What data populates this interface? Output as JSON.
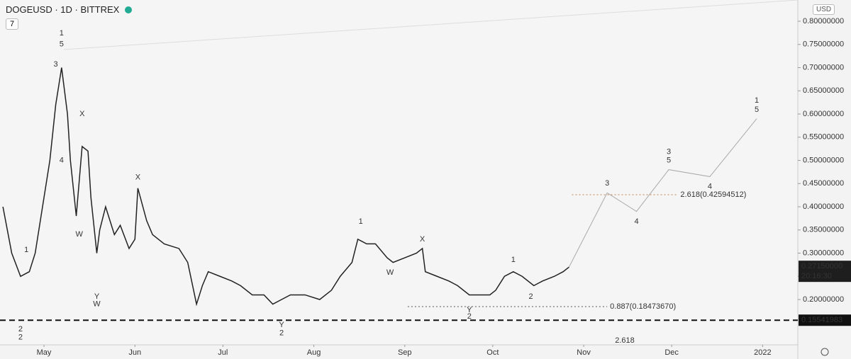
{
  "chart_data": {
    "type": "line",
    "title": "DOGEUSD · 1D · BITTREX",
    "interval_badge": "7",
    "currency": "USD",
    "countdown": "20:16:30",
    "xlim": [
      0,
      272
    ],
    "ylim": [
      0.1023,
      0.8458
    ],
    "xticks": [
      {
        "value": 15,
        "label": "May"
      },
      {
        "value": 46,
        "label": "Jun"
      },
      {
        "value": 76,
        "label": "Jul"
      },
      {
        "value": 107,
        "label": "Aug"
      },
      {
        "value": 138,
        "label": "Sep"
      },
      {
        "value": 168,
        "label": "Oct"
      },
      {
        "value": 199,
        "label": "Nov"
      },
      {
        "value": 229,
        "label": "Dec"
      },
      {
        "value": 260,
        "label": "2022"
      }
    ],
    "yticks": [
      {
        "value": 0.2,
        "label": "0.20000000"
      },
      {
        "value": 0.25,
        "label": "0.25000000"
      },
      {
        "value": 0.3,
        "label": "0.30000000"
      },
      {
        "value": 0.35,
        "label": "0.35000000"
      },
      {
        "value": 0.4,
        "label": "0.40000000"
      },
      {
        "value": 0.45,
        "label": "0.45000000"
      },
      {
        "value": 0.5,
        "label": "0.50000000"
      },
      {
        "value": 0.55,
        "label": "0.55000000"
      },
      {
        "value": 0.6,
        "label": "0.60000000"
      },
      {
        "value": 0.65,
        "label": "0.65000000"
      },
      {
        "value": 0.7,
        "label": "0.70000000"
      },
      {
        "value": 0.75,
        "label": "0.75000000"
      },
      {
        "value": 0.8,
        "label": "0.80000000"
      }
    ],
    "series": [
      {
        "name": "DOGEUSD",
        "color": "#222222",
        "x": [
          1,
          4,
          7,
          10,
          12,
          15,
          17,
          19,
          21,
          23,
          24,
          26,
          28,
          30,
          31,
          33,
          34,
          36,
          39,
          41,
          44,
          46,
          47,
          50,
          52,
          56,
          61,
          64,
          67,
          69,
          71,
          75,
          79,
          82,
          86,
          90,
          93,
          96,
          99,
          104,
          109,
          113,
          116,
          120,
          122,
          125,
          128,
          132,
          134,
          138,
          142,
          144,
          145,
          149,
          153,
          156,
          160,
          163,
          167,
          169,
          172,
          175,
          178,
          182,
          185,
          189,
          192,
          194
        ],
        "values": [
          0.4,
          0.3,
          0.25,
          0.26,
          0.3,
          0.42,
          0.5,
          0.62,
          0.7,
          0.6,
          0.5,
          0.38,
          0.53,
          0.52,
          0.42,
          0.3,
          0.35,
          0.4,
          0.34,
          0.36,
          0.31,
          0.33,
          0.44,
          0.37,
          0.34,
          0.32,
          0.31,
          0.28,
          0.19,
          0.23,
          0.26,
          0.25,
          0.24,
          0.23,
          0.21,
          0.21,
          0.19,
          0.2,
          0.21,
          0.21,
          0.2,
          0.22,
          0.25,
          0.28,
          0.33,
          0.32,
          0.32,
          0.29,
          0.28,
          0.29,
          0.3,
          0.31,
          0.26,
          0.25,
          0.24,
          0.23,
          0.21,
          0.21,
          0.21,
          0.22,
          0.25,
          0.26,
          0.25,
          0.23,
          0.24,
          0.25,
          0.26,
          0.27
        ]
      },
      {
        "name": "Projection",
        "color": "#aaaaaa",
        "x": [
          194,
          207,
          217,
          228,
          242,
          258
        ],
        "values": [
          0.27,
          0.43,
          0.39,
          0.48,
          0.465,
          0.59
        ]
      }
    ],
    "levels": [
      {
        "value": 0.15541983,
        "style": "dashed",
        "color": "#111111"
      },
      {
        "value": 0.1847367,
        "label": "0.887(0.18473670)",
        "x": [
          139,
          207
        ],
        "style": "dotted",
        "color": "#555555"
      },
      {
        "value": 0.42594512,
        "label": "2.618(0.42594512)",
        "x": [
          195,
          231
        ],
        "style": "dotted",
        "color": "#c0824a"
      }
    ],
    "last_price": {
      "value": 0.2715,
      "label": "0.27150000"
    },
    "annotations": [
      {
        "text": "1",
        "x": 21,
        "y": 0.774,
        "color": "#111111"
      },
      {
        "text": "5",
        "x": 21,
        "y": 0.75,
        "color": "#111111"
      },
      {
        "text": "3",
        "x": 19,
        "y": 0.707,
        "color": "#111111"
      },
      {
        "text": "4",
        "x": 21,
        "y": 0.5,
        "color": "#111111"
      },
      {
        "text": "X",
        "x": 28,
        "y": 0.6,
        "color": "#8b1a1a"
      },
      {
        "text": "W",
        "x": 27,
        "y": 0.34,
        "color": "#8b1a1a"
      },
      {
        "text": "Y",
        "x": 33,
        "y": 0.206,
        "color": "#8b1a1a"
      },
      {
        "text": "W",
        "x": 33,
        "y": 0.19,
        "color": "#111111"
      },
      {
        "text": "X",
        "x": 47,
        "y": 0.463,
        "color": "#111111"
      },
      {
        "text": "1",
        "x": 9,
        "y": 0.307,
        "color": "#111111"
      },
      {
        "text": "2",
        "x": 7,
        "y": 0.136,
        "color": "#111111"
      },
      {
        "text": "2",
        "x": 7,
        "y": 0.118,
        "color": "#1a2a6c"
      },
      {
        "text": "Y",
        "x": 96,
        "y": 0.145,
        "color": "#111111"
      },
      {
        "text": "2",
        "x": 96,
        "y": 0.127,
        "color": "#111111"
      },
      {
        "text": "1",
        "x": 123,
        "y": 0.368,
        "color": "#8b1a1a"
      },
      {
        "text": "X",
        "x": 144,
        "y": 0.33,
        "color": "#7b3fa0"
      },
      {
        "text": "W",
        "x": 133,
        "y": 0.258,
        "color": "#7b3fa0"
      },
      {
        "text": "Y",
        "x": 160,
        "y": 0.177,
        "color": "#7b3fa0"
      },
      {
        "text": "2",
        "x": 160,
        "y": 0.163,
        "color": "#111111"
      },
      {
        "text": "1",
        "x": 175,
        "y": 0.285,
        "color": "#111111"
      },
      {
        "text": "2",
        "x": 181,
        "y": 0.206,
        "color": "#111111"
      },
      {
        "text": "3",
        "x": 207,
        "y": 0.45,
        "color": "#111111"
      },
      {
        "text": "4",
        "x": 217,
        "y": 0.368,
        "color": "#111111"
      },
      {
        "text": "3",
        "x": 228,
        "y": 0.518,
        "color": "#8b1a1a"
      },
      {
        "text": "5",
        "x": 228,
        "y": 0.5,
        "color": "#111111"
      },
      {
        "text": "4",
        "x": 242,
        "y": 0.443,
        "color": "#8b1a1a"
      },
      {
        "text": "1",
        "x": 258,
        "y": 0.629,
        "color": "#111111"
      },
      {
        "text": "5",
        "x": 258,
        "y": 0.609,
        "color": "#8b1a1a"
      },
      {
        "text": "2.618",
        "x": 213,
        "y": 0.111,
        "color": "#e3b48a"
      }
    ]
  }
}
